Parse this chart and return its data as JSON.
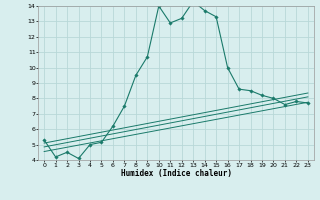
{
  "xlabel": "Humidex (Indice chaleur)",
  "background_color": "#d8eeee",
  "grid_color": "#b8d8d8",
  "line_color": "#1a7a6a",
  "xlim": [
    -0.5,
    23.5
  ],
  "ylim": [
    4,
    14
  ],
  "yticks": [
    4,
    5,
    6,
    7,
    8,
    9,
    10,
    11,
    12,
    13,
    14
  ],
  "xticks": [
    0,
    1,
    2,
    3,
    4,
    5,
    6,
    7,
    8,
    9,
    10,
    11,
    12,
    13,
    14,
    15,
    16,
    17,
    18,
    19,
    20,
    21,
    22,
    23
  ],
  "series1_x": [
    0,
    1,
    2,
    3,
    4,
    5,
    6,
    7,
    8,
    9,
    10,
    11,
    12,
    13,
    14,
    15,
    16,
    17,
    18,
    19,
    20,
    21,
    22,
    23
  ],
  "series1_y": [
    5.3,
    4.2,
    4.5,
    4.1,
    5.0,
    5.15,
    6.2,
    7.5,
    9.5,
    10.7,
    14.0,
    12.9,
    13.2,
    14.3,
    13.7,
    13.3,
    10.0,
    8.6,
    8.5,
    8.2,
    8.0,
    7.6,
    7.8,
    7.7
  ],
  "series2_x": [
    0,
    23
  ],
  "series2_y": [
    4.55,
    7.75
  ],
  "series3_x": [
    0,
    23
  ],
  "series3_y": [
    4.85,
    8.1
  ],
  "series4_x": [
    0,
    23
  ],
  "series4_y": [
    5.1,
    8.35
  ]
}
